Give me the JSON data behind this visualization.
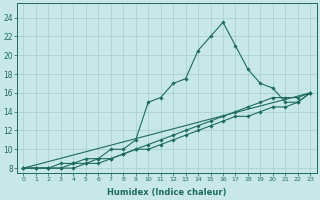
{
  "xlabel": "Humidex (Indice chaleur)",
  "bg_color": "#c8e8e8",
  "grid_color": "#a8cccc",
  "line_color": "#1e6b5e",
  "xlim": [
    -0.5,
    23.5
  ],
  "ylim": [
    7.5,
    25.5
  ],
  "xticks": [
    0,
    1,
    2,
    3,
    4,
    5,
    6,
    7,
    8,
    9,
    10,
    11,
    12,
    13,
    14,
    15,
    16,
    17,
    18,
    19,
    20,
    21,
    22,
    23
  ],
  "yticks": [
    8,
    10,
    12,
    14,
    16,
    18,
    20,
    22,
    24
  ],
  "lines": [
    {
      "x": [
        0,
        1,
        2,
        3,
        4,
        5,
        6,
        7,
        8,
        9,
        10,
        11,
        12,
        13,
        14,
        15,
        16,
        17,
        18,
        19,
        20,
        21,
        22,
        23
      ],
      "y": [
        8,
        8,
        8,
        8.5,
        8.5,
        9,
        9,
        10,
        10,
        11,
        15,
        15.5,
        17,
        17.5,
        20.5,
        22,
        23.5,
        21,
        18.5,
        17,
        16.5,
        15,
        15,
        16
      ],
      "marker": true
    },
    {
      "x": [
        0,
        1,
        2,
        3,
        4,
        5,
        6,
        7,
        8,
        9,
        10,
        11,
        12,
        13,
        14,
        15,
        16,
        17,
        18,
        19,
        20,
        21,
        22,
        23
      ],
      "y": [
        8,
        8,
        8,
        8,
        8.5,
        8.5,
        9,
        9,
        9.5,
        10,
        10.5,
        11,
        11.5,
        12,
        12.5,
        13,
        13.5,
        14,
        14.5,
        15,
        15.5,
        15.5,
        15.5,
        16
      ],
      "marker": true
    },
    {
      "x": [
        0,
        1,
        2,
        3,
        4,
        5,
        6,
        7,
        8,
        9,
        10,
        11,
        12,
        13,
        14,
        15,
        16,
        17,
        18,
        19,
        20,
        21,
        22,
        23
      ],
      "y": [
        8,
        8,
        8,
        8,
        8,
        8.5,
        8.5,
        9,
        9.5,
        10,
        10,
        10.5,
        11,
        11.5,
        12,
        12.5,
        13,
        13.5,
        13.5,
        14,
        14.5,
        14.5,
        15,
        16
      ],
      "marker": true
    },
    {
      "x": [
        0,
        23
      ],
      "y": [
        8,
        16
      ],
      "marker": false
    }
  ]
}
